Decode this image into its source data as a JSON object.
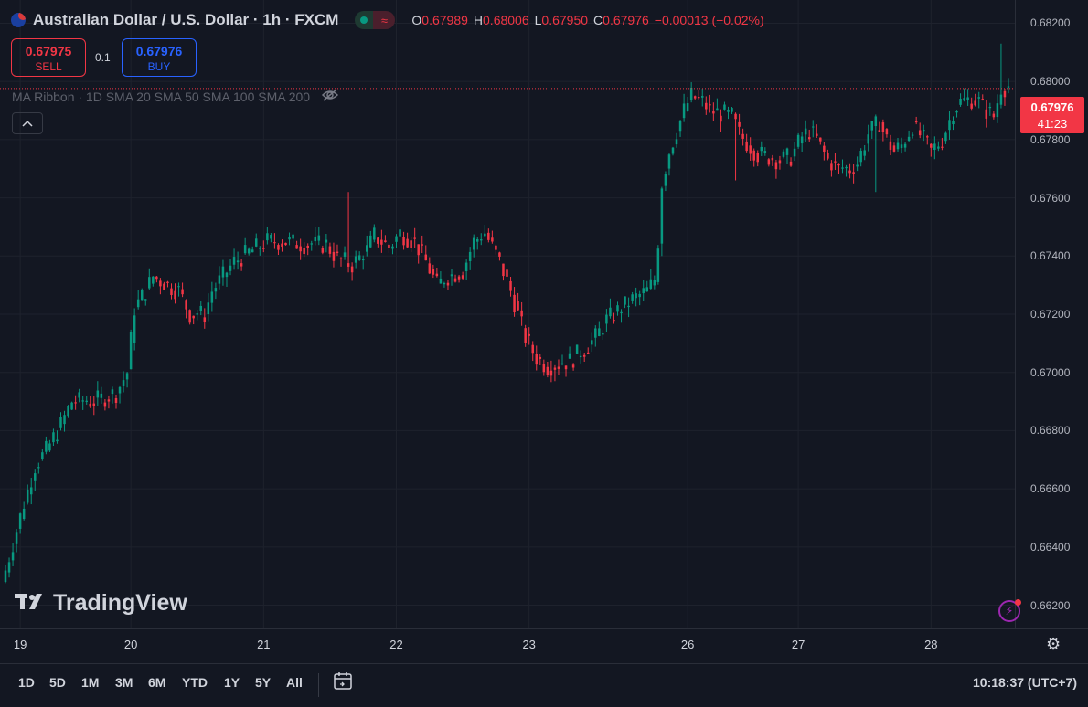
{
  "header": {
    "title": "Australian Dollar / U.S. Dollar · 1h · FXCM",
    "ohlc": [
      {
        "k": "O",
        "v": "0.67989"
      },
      {
        "k": "H",
        "v": "0.68006"
      },
      {
        "k": "L",
        "v": "0.67950"
      },
      {
        "k": "C",
        "v": "0.67976"
      },
      {
        "k": "",
        "v": "−0.00013 (−0.02%)"
      }
    ]
  },
  "trade": {
    "sell_price": "0.67975",
    "sell_label": "SELL",
    "spread": "0.1",
    "buy_price": "0.67976",
    "buy_label": "BUY"
  },
  "indicator": {
    "label": "MA Ribbon · 1D SMA 20 SMA 50 SMA 100 SMA 200"
  },
  "last_price": {
    "price": "0.67976",
    "countdown": "41:23"
  },
  "watermark": {
    "text": "TradingView"
  },
  "ranges": [
    "1D",
    "5D",
    "1M",
    "3M",
    "6M",
    "YTD",
    "1Y",
    "5Y",
    "All"
  ],
  "clock": "10:18:37 (UTC+7)",
  "colors": {
    "up": "#089981",
    "down": "#f23645",
    "background": "#131722",
    "grid": "#1e222d"
  },
  "chart_data": {
    "type": "candlestick",
    "symbol": "AUD/USD",
    "interval": "1h",
    "ylim": [
      0.6612,
      0.6828
    ],
    "y_ticks": [
      "0.68200",
      "0.68000",
      "0.67800",
      "0.67600",
      "0.67400",
      "0.67200",
      "0.67000",
      "0.66800",
      "0.66600",
      "0.66400",
      "0.66200"
    ],
    "x_ticks": [
      "19",
      "20",
      "21",
      "22",
      "23",
      "26",
      "27",
      "28"
    ],
    "anchors": [
      [
        0,
        0.6632
      ],
      [
        5,
        0.6655
      ],
      [
        8,
        0.6668
      ],
      [
        11,
        0.6673
      ],
      [
        15,
        0.6682
      ],
      [
        18,
        0.669
      ],
      [
        24,
        0.669
      ],
      [
        30,
        0.6693
      ],
      [
        33,
        0.67
      ],
      [
        35,
        0.6722
      ],
      [
        38,
        0.6728
      ],
      [
        40,
        0.6733
      ],
      [
        44,
        0.673
      ],
      [
        47,
        0.6728
      ],
      [
        50,
        0.672
      ],
      [
        54,
        0.672
      ],
      [
        56,
        0.6728
      ],
      [
        62,
        0.6738
      ],
      [
        67,
        0.6742
      ],
      [
        71,
        0.6745
      ],
      [
        76,
        0.6745
      ],
      [
        81,
        0.6744
      ],
      [
        87,
        0.6744
      ],
      [
        90,
        0.6739
      ],
      [
        94,
        0.6737
      ],
      [
        98,
        0.6742
      ],
      [
        100,
        0.6747
      ],
      [
        104,
        0.6743
      ],
      [
        107,
        0.6748
      ],
      [
        111,
        0.6745
      ],
      [
        114,
        0.6738
      ],
      [
        117,
        0.673
      ],
      [
        120,
        0.6733
      ],
      [
        124,
        0.6735
      ],
      [
        127,
        0.6745
      ],
      [
        130,
        0.6748
      ],
      [
        134,
        0.6738
      ],
      [
        137,
        0.6728
      ],
      [
        139,
        0.672
      ],
      [
        141,
        0.6712
      ],
      [
        144,
        0.6705
      ],
      [
        147,
        0.6702
      ],
      [
        150,
        0.6703
      ],
      [
        153,
        0.6704
      ],
      [
        157,
        0.6708
      ],
      [
        160,
        0.6712
      ],
      [
        163,
        0.6718
      ],
      [
        167,
        0.6722
      ],
      [
        170,
        0.6725
      ],
      [
        174,
        0.6728
      ],
      [
        176,
        0.6732
      ],
      [
        177,
        0.6745
      ],
      [
        178,
        0.6765
      ],
      [
        180,
        0.6776
      ],
      [
        182,
        0.6783
      ],
      [
        184,
        0.679
      ],
      [
        186,
        0.6795
      ],
      [
        189,
        0.6793
      ],
      [
        191,
        0.679
      ],
      [
        194,
        0.6789
      ],
      [
        197,
        0.6788
      ],
      [
        199,
        0.6782
      ],
      [
        201,
        0.6779
      ],
      [
        204,
        0.6775
      ],
      [
        207,
        0.6774
      ],
      [
        210,
        0.6773
      ],
      [
        213,
        0.6774
      ],
      [
        216,
        0.6781
      ],
      [
        218,
        0.6783
      ],
      [
        220,
        0.678
      ],
      [
        223,
        0.6773
      ],
      [
        226,
        0.677
      ],
      [
        229,
        0.677
      ],
      [
        231,
        0.6772
      ],
      [
        234,
        0.6782
      ],
      [
        237,
        0.6786
      ],
      [
        239,
        0.678
      ],
      [
        241,
        0.6776
      ],
      [
        243,
        0.6778
      ],
      [
        246,
        0.6785
      ],
      [
        249,
        0.678
      ],
      [
        251,
        0.6776
      ],
      [
        254,
        0.678
      ],
      [
        257,
        0.679
      ],
      [
        259,
        0.6793
      ],
      [
        262,
        0.6794
      ],
      [
        264,
        0.6793
      ],
      [
        266,
        0.679
      ],
      [
        268,
        0.6788
      ],
      [
        269,
        0.6793
      ],
      [
        270,
        0.6798
      ],
      [
        272,
        0.6798
      ]
    ],
    "wicks": [
      [
        93,
        0.6762
      ],
      [
        178,
        0.674
      ],
      [
        270,
        0.6813
      ],
      [
        198,
        0.6766
      ],
      [
        236,
        0.6762
      ],
      [
        149,
        0.6697
      ]
    ],
    "day_boundaries": [
      {
        "label": "19",
        "index": 4
      },
      {
        "label": "20",
        "index": 34
      },
      {
        "label": "21",
        "index": 70
      },
      {
        "label": "22",
        "index": 106
      },
      {
        "label": "23",
        "index": 142
      },
      {
        "label": "26",
        "index": 185
      },
      {
        "label": "27",
        "index": 215
      },
      {
        "label": "28",
        "index": 251
      }
    ],
    "last_price": 0.67976
  }
}
